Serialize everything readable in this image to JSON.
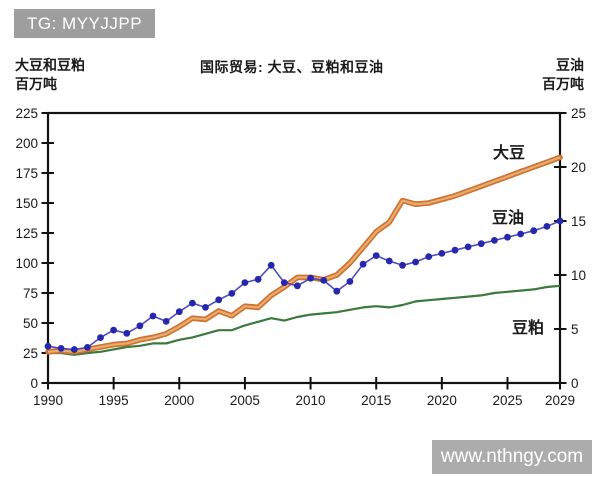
{
  "header": {
    "badge": "TG: MYYJJPP"
  },
  "watermark": "www.nthngy.com",
  "chart_data": {
    "type": "line",
    "title": "国际贸易: 大豆、豆粕和豆油",
    "grid": false,
    "legend": "inline-labels-right",
    "left_axis": {
      "label_line1": "大豆和豆粕",
      "label_line2": "百万吨",
      "range": [
        0,
        225
      ],
      "ticks": [
        0,
        25,
        50,
        75,
        100,
        125,
        150,
        175,
        200,
        225
      ]
    },
    "right_axis": {
      "label_line1": "豆油",
      "label_line2": "百万吨",
      "range": [
        0,
        25
      ],
      "ticks": [
        0,
        5,
        10,
        15,
        20,
        25
      ]
    },
    "x_axis": {
      "range": [
        1990,
        2029
      ],
      "ticks": [
        1990,
        1995,
        2000,
        2005,
        2010,
        2015,
        2020,
        2025,
        2029
      ]
    },
    "years": [
      1990,
      1991,
      1992,
      1993,
      1994,
      1995,
      1996,
      1997,
      1998,
      1999,
      2000,
      2001,
      2002,
      2003,
      2004,
      2005,
      2006,
      2007,
      2008,
      2009,
      2010,
      2011,
      2012,
      2013,
      2014,
      2015,
      2016,
      2017,
      2018,
      2019,
      2020,
      2021,
      2022,
      2023,
      2024,
      2025,
      2026,
      2027,
      2028,
      2029
    ],
    "series": [
      {
        "name": "豆粕",
        "axis": "left",
        "style": "thin",
        "color": "#3A7A3C",
        "values": [
          25,
          25,
          23.5,
          25,
          26,
          28,
          30,
          31,
          33,
          33,
          36,
          38,
          41,
          44,
          44,
          48,
          51,
          54,
          52,
          55,
          57,
          58,
          59,
          61,
          63,
          64,
          63,
          65,
          68,
          69,
          70,
          71,
          72,
          73,
          75,
          76,
          77,
          78,
          80,
          81
        ]
      },
      {
        "name": "大豆",
        "axis": "left",
        "style": "thick",
        "color": "#CE7331",
        "color_inner": "#E9AC6F",
        "values": [
          26,
          27,
          26,
          28,
          30,
          32,
          33,
          36,
          38,
          41,
          47,
          54,
          53,
          60,
          56,
          64,
          63,
          73,
          80,
          88,
          88,
          86,
          90,
          100,
          113,
          126,
          134,
          152,
          149,
          150,
          153,
          156,
          160,
          164,
          168,
          172,
          176,
          180,
          184,
          188
        ]
      },
      {
        "name": "豆油",
        "axis": "right",
        "style": "markers",
        "color": "#2626AE",
        "line_color": "#4C4CC4",
        "values": [
          3.4,
          3.2,
          3.1,
          3.3,
          4.2,
          4.9,
          4.6,
          5.3,
          6.2,
          5.7,
          6.6,
          7.4,
          7.0,
          7.7,
          8.3,
          9.3,
          9.6,
          10.9,
          9.3,
          9.0,
          9.7,
          9.5,
          8.5,
          9.4,
          11.0,
          11.8,
          11.3,
          10.9,
          11.2,
          11.7,
          12.0,
          12.3,
          12.6,
          12.9,
          13.2,
          13.5,
          13.8,
          14.1,
          14.5,
          15.0
        ]
      }
    ],
    "axis_color": "#111111",
    "tick_label_color": "#1a1a1a"
  }
}
